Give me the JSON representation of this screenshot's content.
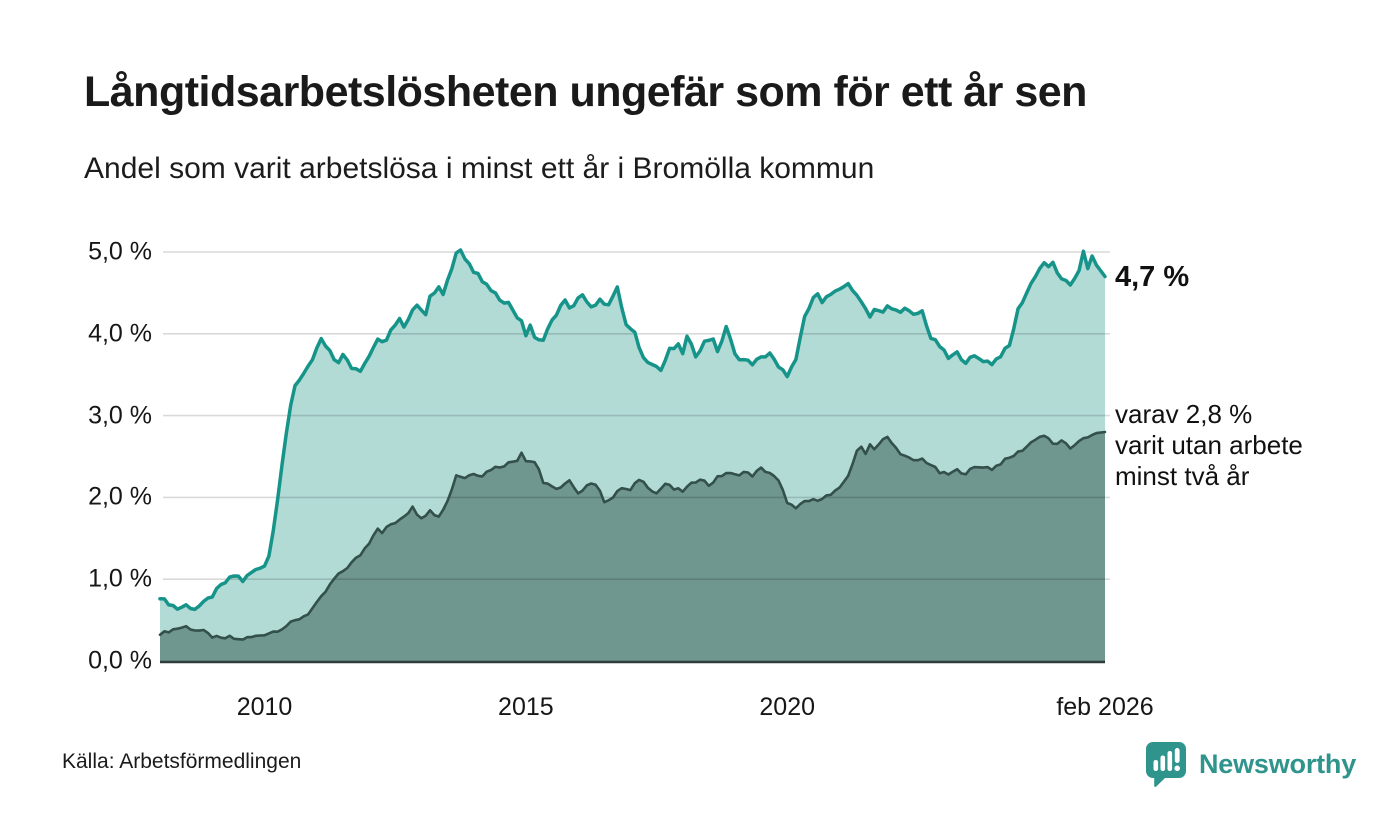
{
  "header": {
    "title": "Långtidsarbetslösheten ungefär som för ett år sen",
    "subtitle": "Andel som varit arbetslösa i minst ett år i Bromölla kommun"
  },
  "annotations": {
    "latest_total": "4,7 %",
    "two_year_note": "varav 2,8 %\nvarit utan arbete\nminst två år"
  },
  "footer": {
    "source": "Källa: Arbetsförmedlingen",
    "brand": "Newsworthy"
  },
  "colors": {
    "total_line": "#17948a",
    "total_fill": "#abd8d2",
    "two_year_line": "#33504a",
    "two_year_fill": "#6f968f",
    "gridline": "rgba(0,0,0,0.15)",
    "baseline": "#2f3c39",
    "brand_teal": "#2f948c"
  },
  "chart_data": {
    "type": "area",
    "title": "Långtidsarbetslösheten ungefär som för ett år sen",
    "subtitle": "Andel som varit arbetslösa i minst ett år i Bromölla kommun",
    "x_axis": {
      "unit": "år",
      "range": [
        2008.0,
        2026.08
      ],
      "ticks": [
        {
          "t": 2010,
          "label": "2010"
        },
        {
          "t": 2015,
          "label": "2015"
        },
        {
          "t": 2020,
          "label": "2020"
        },
        {
          "t": 2026.08,
          "label": "feb 2026"
        }
      ]
    },
    "y_axis": {
      "unit": "%",
      "range": [
        0,
        5.2
      ],
      "ticks": [
        {
          "v": 0,
          "label": "0,0 %"
        },
        {
          "v": 1,
          "label": "1,0 %"
        },
        {
          "v": 2,
          "label": "2,0 %"
        },
        {
          "v": 3,
          "label": "3,0 %"
        },
        {
          "v": 4,
          "label": "4,0 %"
        },
        {
          "v": 5,
          "label": "5,0 %"
        }
      ]
    },
    "latest": {
      "total_pct": "4,7 %",
      "two_year_pct": "2,8 %"
    },
    "series": [
      {
        "name": "Arbetslösa minst ett år",
        "line_color": "#17948a",
        "fill_color": "#abd8d2",
        "line_width": 3.5,
        "points": [
          [
            2008.0,
            0.76
          ],
          [
            2008.17,
            0.71
          ],
          [
            2008.33,
            0.64
          ],
          [
            2008.5,
            0.68
          ],
          [
            2008.67,
            0.64
          ],
          [
            2008.83,
            0.7
          ],
          [
            2009.0,
            0.8
          ],
          [
            2009.17,
            0.92
          ],
          [
            2009.33,
            1.0
          ],
          [
            2009.45,
            1.06
          ],
          [
            2009.58,
            0.98
          ],
          [
            2009.75,
            1.08
          ],
          [
            2009.92,
            1.14
          ],
          [
            2010.0,
            1.18
          ],
          [
            2010.08,
            1.28
          ],
          [
            2010.17,
            1.6
          ],
          [
            2010.25,
            2.0
          ],
          [
            2010.33,
            2.4
          ],
          [
            2010.42,
            2.8
          ],
          [
            2010.5,
            3.1
          ],
          [
            2010.58,
            3.35
          ],
          [
            2010.67,
            3.45
          ],
          [
            2010.75,
            3.52
          ],
          [
            2010.83,
            3.62
          ],
          [
            2010.92,
            3.68
          ],
          [
            2011.0,
            3.8
          ],
          [
            2011.08,
            3.92
          ],
          [
            2011.17,
            3.85
          ],
          [
            2011.25,
            3.78
          ],
          [
            2011.33,
            3.68
          ],
          [
            2011.42,
            3.62
          ],
          [
            2011.5,
            3.75
          ],
          [
            2011.58,
            3.7
          ],
          [
            2011.67,
            3.56
          ],
          [
            2011.83,
            3.55
          ],
          [
            2011.92,
            3.64
          ],
          [
            2012.08,
            3.85
          ],
          [
            2012.17,
            3.95
          ],
          [
            2012.33,
            3.9
          ],
          [
            2012.42,
            4.05
          ],
          [
            2012.58,
            4.17
          ],
          [
            2012.67,
            4.08
          ],
          [
            2012.83,
            4.3
          ],
          [
            2012.92,
            4.37
          ],
          [
            2013.08,
            4.25
          ],
          [
            2013.17,
            4.45
          ],
          [
            2013.33,
            4.6
          ],
          [
            2013.42,
            4.5
          ],
          [
            2013.58,
            4.8
          ],
          [
            2013.67,
            5.0
          ],
          [
            2013.72,
            5.15
          ],
          [
            2013.79,
            4.88
          ],
          [
            2013.88,
            4.97
          ],
          [
            2013.96,
            4.72
          ],
          [
            2014.04,
            4.82
          ],
          [
            2014.17,
            4.65
          ],
          [
            2014.33,
            4.55
          ],
          [
            2014.5,
            4.43
          ],
          [
            2014.67,
            4.37
          ],
          [
            2014.83,
            4.22
          ],
          [
            2014.92,
            4.17
          ],
          [
            2015.0,
            4.0
          ],
          [
            2015.08,
            4.12
          ],
          [
            2015.17,
            3.95
          ],
          [
            2015.33,
            3.92
          ],
          [
            2015.5,
            4.15
          ],
          [
            2015.67,
            4.35
          ],
          [
            2015.75,
            4.4
          ],
          [
            2015.83,
            4.3
          ],
          [
            2015.92,
            4.33
          ],
          [
            2016.08,
            4.5
          ],
          [
            2016.25,
            4.33
          ],
          [
            2016.42,
            4.4
          ],
          [
            2016.58,
            4.37
          ],
          [
            2016.75,
            4.55
          ],
          [
            2016.92,
            4.1
          ],
          [
            2017.08,
            4.0
          ],
          [
            2017.25,
            3.7
          ],
          [
            2017.42,
            3.65
          ],
          [
            2017.58,
            3.55
          ],
          [
            2017.75,
            3.8
          ],
          [
            2017.92,
            3.85
          ],
          [
            2018.0,
            3.77
          ],
          [
            2018.08,
            3.96
          ],
          [
            2018.25,
            3.74
          ],
          [
            2018.42,
            3.9
          ],
          [
            2018.58,
            3.96
          ],
          [
            2018.67,
            3.75
          ],
          [
            2018.83,
            4.1
          ],
          [
            2019.0,
            3.74
          ],
          [
            2019.17,
            3.68
          ],
          [
            2019.33,
            3.64
          ],
          [
            2019.5,
            3.7
          ],
          [
            2019.67,
            3.77
          ],
          [
            2019.83,
            3.58
          ],
          [
            2020.0,
            3.5
          ],
          [
            2020.17,
            3.67
          ],
          [
            2020.33,
            4.2
          ],
          [
            2020.5,
            4.42
          ],
          [
            2020.58,
            4.52
          ],
          [
            2020.67,
            4.4
          ],
          [
            2020.83,
            4.48
          ],
          [
            2021.0,
            4.52
          ],
          [
            2021.17,
            4.63
          ],
          [
            2021.33,
            4.45
          ],
          [
            2021.5,
            4.33
          ],
          [
            2021.58,
            4.2
          ],
          [
            2021.67,
            4.32
          ],
          [
            2021.83,
            4.25
          ],
          [
            2021.92,
            4.33
          ],
          [
            2022.08,
            4.28
          ],
          [
            2022.25,
            4.3
          ],
          [
            2022.42,
            4.22
          ],
          [
            2022.58,
            4.28
          ],
          [
            2022.75,
            3.95
          ],
          [
            2022.92,
            3.85
          ],
          [
            2023.08,
            3.7
          ],
          [
            2023.25,
            3.76
          ],
          [
            2023.42,
            3.66
          ],
          [
            2023.58,
            3.72
          ],
          [
            2023.75,
            3.68
          ],
          [
            2023.92,
            3.64
          ],
          [
            2024.08,
            3.74
          ],
          [
            2024.25,
            3.85
          ],
          [
            2024.42,
            4.3
          ],
          [
            2024.58,
            4.5
          ],
          [
            2024.75,
            4.72
          ],
          [
            2024.92,
            4.88
          ],
          [
            2025.0,
            4.8
          ],
          [
            2025.08,
            4.87
          ],
          [
            2025.25,
            4.65
          ],
          [
            2025.42,
            4.6
          ],
          [
            2025.58,
            4.78
          ],
          [
            2025.67,
            5.0
          ],
          [
            2025.75,
            4.78
          ],
          [
            2025.83,
            4.95
          ],
          [
            2025.92,
            4.85
          ],
          [
            2026.08,
            4.7
          ]
        ]
      },
      {
        "name": "Utan arbete minst två år",
        "line_color": "#33504a",
        "fill_color": "#6f968f",
        "line_width": 2.6,
        "points": [
          [
            2008.0,
            0.32
          ],
          [
            2008.17,
            0.37
          ],
          [
            2008.33,
            0.4
          ],
          [
            2008.5,
            0.42
          ],
          [
            2008.67,
            0.38
          ],
          [
            2008.83,
            0.36
          ],
          [
            2009.0,
            0.3
          ],
          [
            2009.17,
            0.27
          ],
          [
            2009.33,
            0.29
          ],
          [
            2009.5,
            0.26
          ],
          [
            2009.67,
            0.28
          ],
          [
            2009.83,
            0.3
          ],
          [
            2010.0,
            0.33
          ],
          [
            2010.17,
            0.36
          ],
          [
            2010.33,
            0.4
          ],
          [
            2010.5,
            0.46
          ],
          [
            2010.67,
            0.52
          ],
          [
            2010.83,
            0.58
          ],
          [
            2011.0,
            0.7
          ],
          [
            2011.17,
            0.85
          ],
          [
            2011.33,
            1.0
          ],
          [
            2011.5,
            1.1
          ],
          [
            2011.67,
            1.2
          ],
          [
            2011.83,
            1.3
          ],
          [
            2012.0,
            1.45
          ],
          [
            2012.08,
            1.55
          ],
          [
            2012.17,
            1.63
          ],
          [
            2012.25,
            1.58
          ],
          [
            2012.42,
            1.67
          ],
          [
            2012.58,
            1.71
          ],
          [
            2012.75,
            1.82
          ],
          [
            2012.83,
            1.9
          ],
          [
            2012.92,
            1.8
          ],
          [
            2013.0,
            1.76
          ],
          [
            2013.17,
            1.83
          ],
          [
            2013.33,
            1.78
          ],
          [
            2013.5,
            1.95
          ],
          [
            2013.58,
            2.1
          ],
          [
            2013.67,
            2.28
          ],
          [
            2013.83,
            2.24
          ],
          [
            2014.0,
            2.3
          ],
          [
            2014.17,
            2.27
          ],
          [
            2014.33,
            2.35
          ],
          [
            2014.5,
            2.38
          ],
          [
            2014.67,
            2.42
          ],
          [
            2014.83,
            2.46
          ],
          [
            2014.92,
            2.56
          ],
          [
            2015.0,
            2.46
          ],
          [
            2015.17,
            2.43
          ],
          [
            2015.25,
            2.35
          ],
          [
            2015.33,
            2.18
          ],
          [
            2015.5,
            2.12
          ],
          [
            2015.67,
            2.12
          ],
          [
            2015.83,
            2.2
          ],
          [
            2016.0,
            2.03
          ],
          [
            2016.17,
            2.17
          ],
          [
            2016.33,
            2.17
          ],
          [
            2016.5,
            1.96
          ],
          [
            2016.67,
            2.0
          ],
          [
            2016.83,
            2.12
          ],
          [
            2017.0,
            2.08
          ],
          [
            2017.17,
            2.23
          ],
          [
            2017.33,
            2.14
          ],
          [
            2017.5,
            2.05
          ],
          [
            2017.67,
            2.17
          ],
          [
            2017.83,
            2.1
          ],
          [
            2018.0,
            2.08
          ],
          [
            2018.17,
            2.16
          ],
          [
            2018.33,
            2.24
          ],
          [
            2018.5,
            2.15
          ],
          [
            2018.67,
            2.24
          ],
          [
            2018.83,
            2.3
          ],
          [
            2019.0,
            2.27
          ],
          [
            2019.17,
            2.31
          ],
          [
            2019.33,
            2.27
          ],
          [
            2019.5,
            2.35
          ],
          [
            2019.67,
            2.3
          ],
          [
            2019.83,
            2.2
          ],
          [
            2020.0,
            1.95
          ],
          [
            2020.17,
            1.85
          ],
          [
            2020.33,
            1.95
          ],
          [
            2020.5,
            1.96
          ],
          [
            2020.67,
            2.0
          ],
          [
            2020.83,
            2.03
          ],
          [
            2021.0,
            2.1
          ],
          [
            2021.17,
            2.28
          ],
          [
            2021.33,
            2.55
          ],
          [
            2021.42,
            2.62
          ],
          [
            2021.5,
            2.55
          ],
          [
            2021.58,
            2.65
          ],
          [
            2021.67,
            2.6
          ],
          [
            2021.83,
            2.7
          ],
          [
            2021.92,
            2.73
          ],
          [
            2022.08,
            2.6
          ],
          [
            2022.25,
            2.5
          ],
          [
            2022.42,
            2.44
          ],
          [
            2022.58,
            2.47
          ],
          [
            2022.75,
            2.4
          ],
          [
            2022.92,
            2.3
          ],
          [
            2023.08,
            2.28
          ],
          [
            2023.25,
            2.33
          ],
          [
            2023.42,
            2.3
          ],
          [
            2023.58,
            2.36
          ],
          [
            2023.75,
            2.38
          ],
          [
            2023.92,
            2.35
          ],
          [
            2024.08,
            2.42
          ],
          [
            2024.25,
            2.48
          ],
          [
            2024.42,
            2.55
          ],
          [
            2024.58,
            2.62
          ],
          [
            2024.75,
            2.72
          ],
          [
            2024.92,
            2.76
          ],
          [
            2025.08,
            2.65
          ],
          [
            2025.25,
            2.68
          ],
          [
            2025.42,
            2.6
          ],
          [
            2025.58,
            2.7
          ],
          [
            2025.75,
            2.72
          ],
          [
            2025.92,
            2.8
          ],
          [
            2026.08,
            2.8
          ]
        ]
      }
    ]
  }
}
